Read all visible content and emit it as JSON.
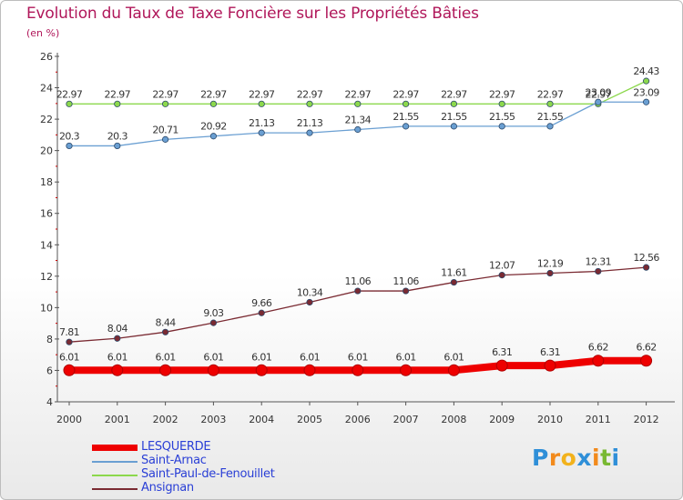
{
  "chart_data": {
    "type": "line",
    "title": "Evolution du Taux de Taxe Foncière sur les Propriétés Bâties",
    "unit_label": "(en %)",
    "xlabel": "",
    "ylabel": "",
    "ylim": [
      4,
      26
    ],
    "y_ticks": [
      "4",
      "6",
      "8",
      "10",
      "12",
      "14",
      "16",
      "18",
      "20",
      "22",
      "24",
      "26"
    ],
    "categories": [
      "2000",
      "2001",
      "2002",
      "2003",
      "2004",
      "2005",
      "2006",
      "2007",
      "2008",
      "2009",
      "2010",
      "2011",
      "2012"
    ],
    "grid": false,
    "legend_position": "bottom-left",
    "series": [
      {
        "name": "LESQUERDE",
        "color": "#ee0000",
        "values": [
          6.01,
          6.01,
          6.01,
          6.01,
          6.01,
          6.01,
          6.01,
          6.01,
          6.01,
          6.31,
          6.31,
          6.62,
          6.62
        ],
        "labels": [
          "6.01",
          "6.01",
          "6.01",
          "6.01",
          "6.01",
          "6.01",
          "6.01",
          "6.01",
          "6.01",
          "6.31",
          "6.31",
          "6.62",
          "6.62"
        ]
      },
      {
        "name": "Saint-Arnac",
        "color": "#6a9fd2",
        "values": [
          20.3,
          20.3,
          20.71,
          20.92,
          21.13,
          21.13,
          21.34,
          21.55,
          21.55,
          21.55,
          21.55,
          23.09,
          23.09
        ],
        "labels": [
          "20.3",
          "20.3",
          "20.71",
          "20.92",
          "21.13",
          "21.13",
          "21.34",
          "21.55",
          "21.55",
          "21.55",
          "21.55",
          "23.09",
          "23.09"
        ]
      },
      {
        "name": "Saint-Paul-de-Fenouillet",
        "color": "#8cd84c",
        "values": [
          22.97,
          22.97,
          22.97,
          22.97,
          22.97,
          22.97,
          22.97,
          22.97,
          22.97,
          22.97,
          22.97,
          22.97,
          24.43
        ],
        "labels": [
          "22.97",
          "22.97",
          "22.97",
          "22.97",
          "22.97",
          "22.97",
          "22.97",
          "22.97",
          "22.97",
          "22.97",
          "22.97",
          "22.97",
          "24.43"
        ]
      },
      {
        "name": "Ansignan",
        "color": "#7a2a32",
        "values": [
          7.81,
          8.04,
          8.44,
          9.03,
          9.66,
          10.34,
          11.06,
          11.06,
          11.61,
          12.07,
          12.19,
          12.31,
          12.56
        ],
        "labels": [
          "7.81",
          "8.04",
          "8.44",
          "9.03",
          "9.66",
          "10.34",
          "11.06",
          "11.06",
          "11.61",
          "12.07",
          "12.19",
          "12.31",
          "12.56"
        ]
      }
    ]
  },
  "logo": {
    "text": "Proxiti",
    "letters": [
      "P",
      "r",
      "o",
      "x",
      "i",
      "t",
      "i"
    ],
    "colors": [
      "#2f8fd8",
      "#f28a1c",
      "#f2b21c",
      "#2f8fd8",
      "#f28a1c",
      "#78b832",
      "#2f8fd8"
    ]
  }
}
